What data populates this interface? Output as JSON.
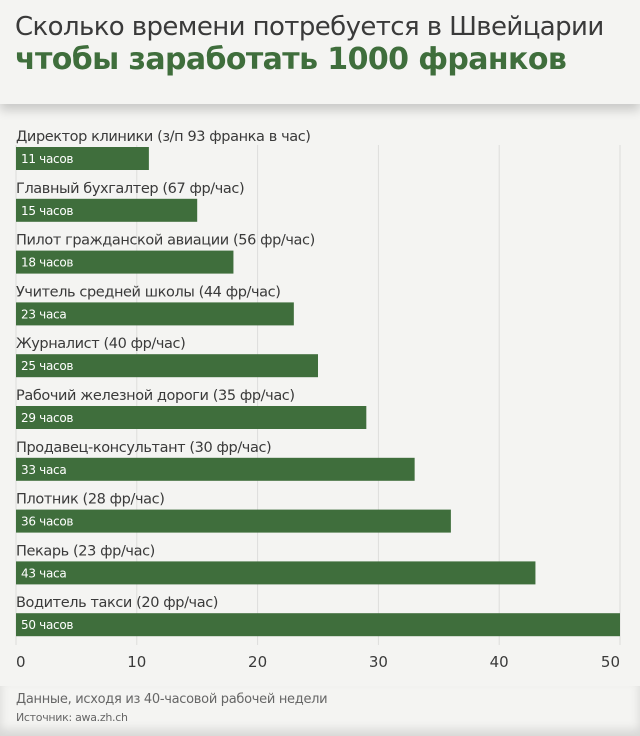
{
  "header": {
    "title_line1": "Сколько времени потребуется в Швейцарии",
    "title_line2": "чтобы заработать 1000 франков"
  },
  "footer": {
    "note": "Данные, исходя из 40-часовой рабочей недели",
    "source": "Источник: awa.zh.ch"
  },
  "colors": {
    "bar": "#3f6e3c",
    "text": "#3a3a3a",
    "grid": "#dddddb"
  },
  "chart_data": {
    "type": "bar",
    "orientation": "horizontal",
    "title": "Сколько времени потребуется в Швейцарии чтобы заработать 1000 франков",
    "categories": [
      "Директор клиники (з/п 93 франка в час)",
      "Главный бухгалтер (67 фр/час)",
      "Пилот гражданской авиации (56 фр/час)",
      "Учитель средней школы (44 фр/час)",
      "Журналист (40 фр/час)",
      "Рабочий железной дороги (35 фр/час)",
      "Продавец-консультант (30 фр/час)",
      "Плотник (28 фр/час)",
      "Пекарь (23 фр/час)",
      "Водитель такси (20 фр/час)"
    ],
    "values": [
      11,
      15,
      18,
      23,
      25,
      29,
      33,
      36,
      43,
      50
    ],
    "data_labels": [
      "11 часов",
      "15 часов",
      "18 часов",
      "23 часа",
      "25 часов",
      "29 часов",
      "33 часа",
      "36 часов",
      "43 часа",
      "50 часов"
    ],
    "xlim": [
      0,
      50
    ],
    "xticks": [
      "0",
      "10",
      "20",
      "30",
      "40",
      "50"
    ],
    "grid": true
  }
}
